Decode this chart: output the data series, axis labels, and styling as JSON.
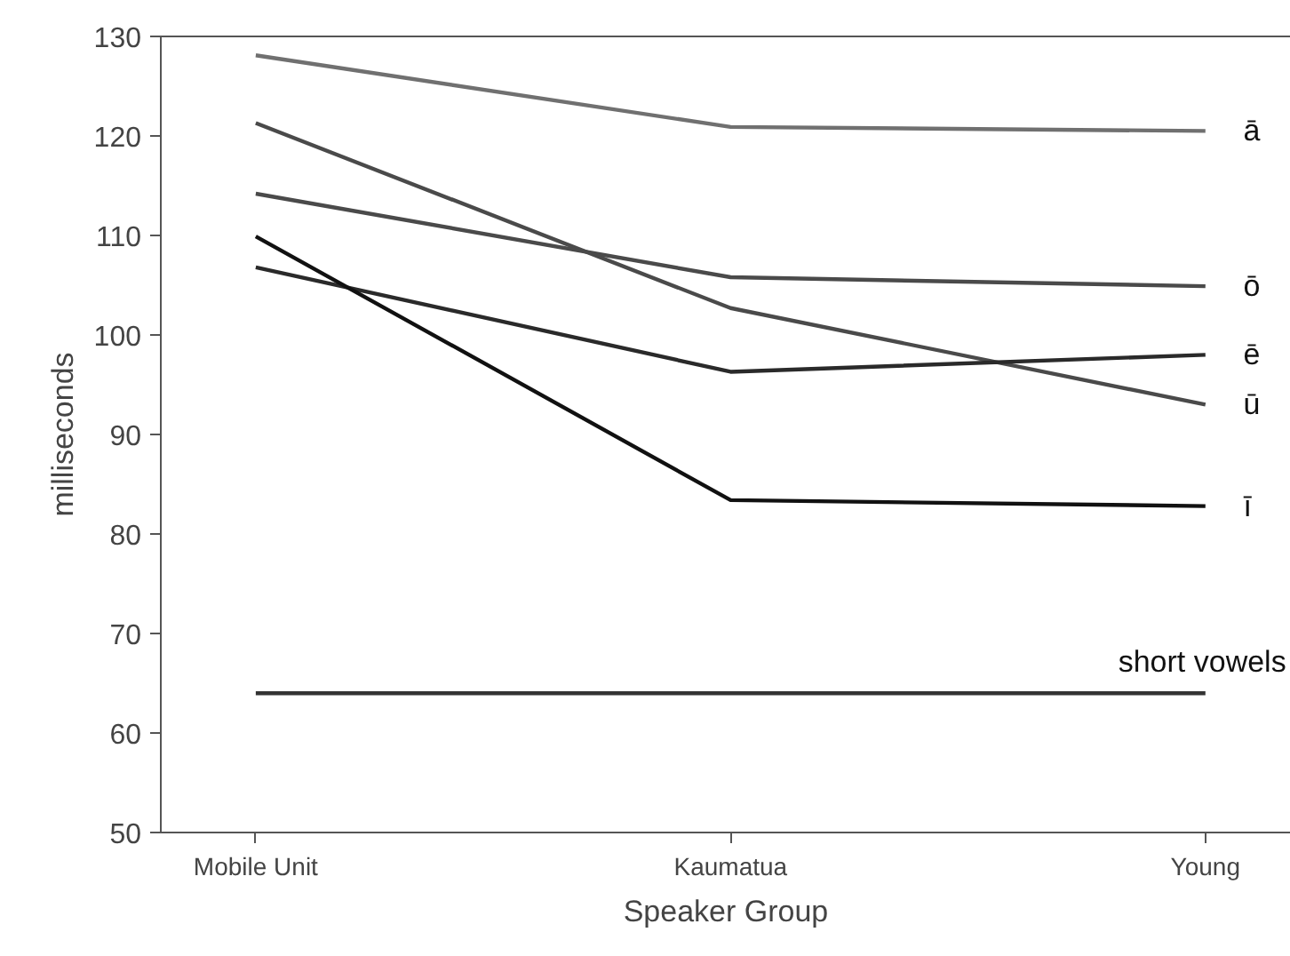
{
  "chart_data": {
    "type": "line",
    "xlabel": "Speaker Group",
    "ylabel": "milliseconds",
    "categories": [
      "Mobile Unit",
      "Kaumatua",
      "Young"
    ],
    "ylim": [
      50,
      130
    ],
    "yticks": [
      50,
      60,
      70,
      80,
      90,
      100,
      110,
      120,
      130
    ],
    "series": [
      {
        "name": "ā",
        "color": "#707070",
        "values": [
          128.1,
          120.9,
          120.5
        ]
      },
      {
        "name": "ū",
        "color": "#4a4a4a",
        "values": [
          121.3,
          102.7,
          93.0
        ]
      },
      {
        "name": "ō",
        "color": "#4a4a4a",
        "values": [
          114.2,
          105.8,
          104.9
        ]
      },
      {
        "name": "ē",
        "color": "#2a2a2a",
        "values": [
          106.8,
          96.3,
          98.0
        ]
      },
      {
        "name": "ī",
        "color": "#111111",
        "values": [
          109.9,
          83.4,
          82.8
        ]
      },
      {
        "name": "short vowels",
        "color": "#333333",
        "values": [
          64,
          64,
          64
        ]
      }
    ]
  }
}
